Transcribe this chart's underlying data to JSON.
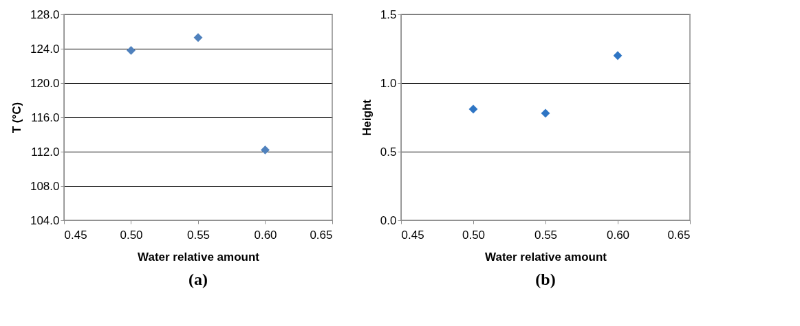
{
  "chart_data": [
    {
      "type": "scatter",
      "xlabel": "Water relative amount",
      "ylabel": "T (°C)",
      "x": [
        0.5,
        0.55,
        0.6
      ],
      "series": [
        {
          "color": "#4f81bd",
          "values": [
            123.8,
            125.3,
            112.2
          ]
        }
      ],
      "xlim": [
        0.45,
        0.65
      ],
      "xticks": [
        {
          "value": 0.45,
          "label": "0.45"
        },
        {
          "value": 0.5,
          "label": "0.50"
        },
        {
          "value": 0.55,
          "label": "0.55"
        },
        {
          "value": 0.6,
          "label": "0.60"
        },
        {
          "value": 0.65,
          "label": "0.65"
        }
      ],
      "ylim": [
        104,
        128
      ],
      "yticks": [
        {
          "value": 104,
          "label": "104.0"
        },
        {
          "value": 108,
          "label": "108.0"
        },
        {
          "value": 112,
          "label": "112.0"
        },
        {
          "value": 116,
          "label": "116.0"
        },
        {
          "value": 120,
          "label": "120.0"
        },
        {
          "value": 124,
          "label": "124.0"
        },
        {
          "value": 128,
          "label": "128.0"
        }
      ],
      "grid": "y",
      "marker": "diamond",
      "annotations": [
        "(a)"
      ]
    },
    {
      "type": "scatter",
      "xlabel": "Water relative amount",
      "ylabel": "Height",
      "x": [
        0.5,
        0.55,
        0.6
      ],
      "series": [
        {
          "color": "#2e75c4",
          "values": [
            0.81,
            0.78,
            1.2
          ]
        }
      ],
      "xlim": [
        0.45,
        0.65
      ],
      "xticks": [
        {
          "value": 0.45,
          "label": "0.45"
        },
        {
          "value": 0.5,
          "label": "0.50"
        },
        {
          "value": 0.55,
          "label": "0.55"
        },
        {
          "value": 0.6,
          "label": "0.60"
        },
        {
          "value": 0.65,
          "label": "0.65"
        }
      ],
      "ylim": [
        0,
        1.5
      ],
      "yticks": [
        {
          "value": 0,
          "label": "0.0"
        },
        {
          "value": 0.5,
          "label": "0.5"
        },
        {
          "value": 1.0,
          "label": "1.0"
        },
        {
          "value": 1.5,
          "label": "1.5"
        }
      ],
      "grid": "y",
      "marker": "diamond",
      "annotations": [
        "(b)"
      ]
    }
  ]
}
